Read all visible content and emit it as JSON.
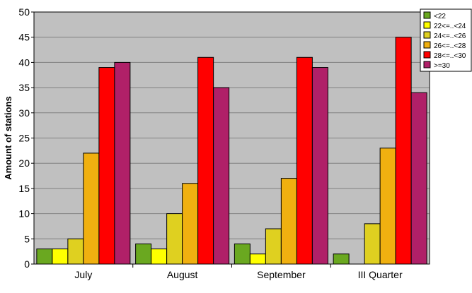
{
  "chart_data": {
    "type": "bar",
    "title": "",
    "xlabel": "",
    "ylabel": "Amount of stations",
    "ylim": [
      0,
      50
    ],
    "yticks": [
      0,
      5,
      10,
      15,
      20,
      25,
      30,
      35,
      40,
      45,
      50
    ],
    "grid": true,
    "legend_position": "top-right",
    "plot_background": "#c0c0c0",
    "categories": [
      "July",
      "August",
      "September",
      "III Quarter"
    ],
    "series": [
      {
        "name": "<22",
        "color": "#6aa820",
        "values": [
          3,
          4,
          4,
          2
        ]
      },
      {
        "name": "22<=..<24",
        "color": "#ffff00",
        "values": [
          3,
          3,
          2,
          0
        ]
      },
      {
        "name": "24<=..<26",
        "color": "#dfd020",
        "values": [
          5,
          10,
          7,
          8
        ]
      },
      {
        "name": "26<=..<28",
        "color": "#f0b010",
        "values": [
          22,
          16,
          17,
          23
        ]
      },
      {
        "name": "28<=..<30",
        "color": "#ff0000",
        "values": [
          39,
          41,
          41,
          45
        ]
      },
      {
        "name": ">=30",
        "color": "#b02068",
        "values": [
          40,
          35,
          39,
          34
        ]
      }
    ]
  }
}
